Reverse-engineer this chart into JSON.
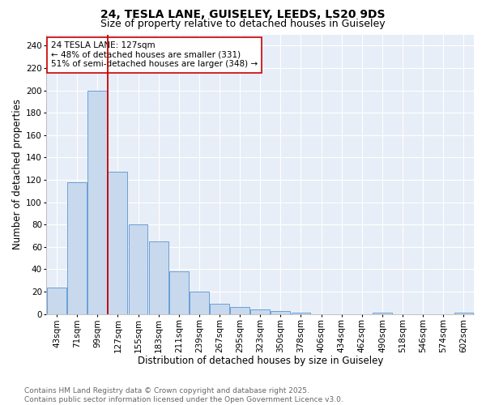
{
  "title1": "24, TESLA LANE, GUISELEY, LEEDS, LS20 9DS",
  "title2": "Size of property relative to detached houses in Guiseley",
  "xlabel": "Distribution of detached houses by size in Guiseley",
  "ylabel": "Number of detached properties",
  "categories": [
    "43sqm",
    "71sqm",
    "99sqm",
    "127sqm",
    "155sqm",
    "183sqm",
    "211sqm",
    "239sqm",
    "267sqm",
    "295sqm",
    "323sqm",
    "350sqm",
    "378sqm",
    "406sqm",
    "434sqm",
    "462sqm",
    "490sqm",
    "518sqm",
    "546sqm",
    "574sqm",
    "602sqm"
  ],
  "values": [
    24,
    118,
    200,
    127,
    80,
    65,
    38,
    20,
    9,
    6,
    4,
    3,
    1,
    0,
    0,
    0,
    1,
    0,
    0,
    0,
    1
  ],
  "bar_color": "#c8d9ed",
  "bar_edge_color": "#6a9fd8",
  "vline_color": "#cc0000",
  "annotation_text": "24 TESLA LANE: 127sqm\n← 48% of detached houses are smaller (331)\n51% of semi-detached houses are larger (348) →",
  "annotation_box_edge_color": "#cc0000",
  "ylim": [
    0,
    250
  ],
  "yticks": [
    0,
    20,
    40,
    60,
    80,
    100,
    120,
    140,
    160,
    180,
    200,
    220,
    240
  ],
  "footer_text": "Contains HM Land Registry data © Crown copyright and database right 2025.\nContains public sector information licensed under the Open Government Licence v3.0.",
  "fig_bg_color": "#ffffff",
  "plot_bg_color": "#e8eef7",
  "grid_color": "#ffffff",
  "title_fontsize": 10,
  "subtitle_fontsize": 9,
  "axis_label_fontsize": 8.5,
  "tick_fontsize": 7.5,
  "annotation_fontsize": 7.5,
  "footer_fontsize": 6.5
}
